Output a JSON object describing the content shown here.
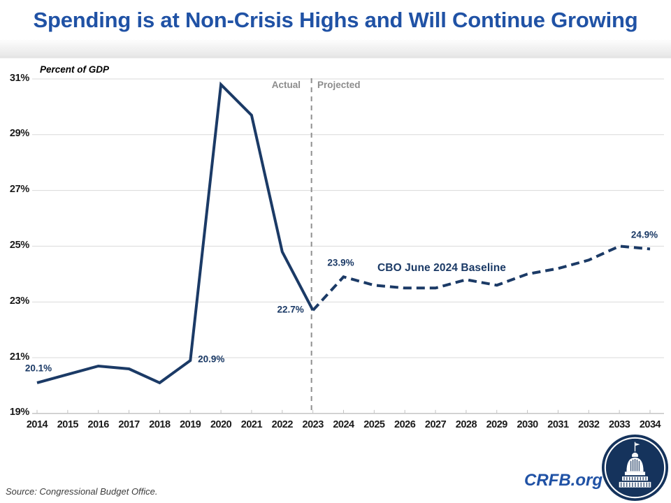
{
  "title": "Spending is at Non-Crisis Highs and Will Continue Growing",
  "source": "Source: Congressional Budget Office.",
  "branding": {
    "site": "CRFB.org",
    "logo_icon": "capitol-dome-icon"
  },
  "chart_data": {
    "type": "line",
    "title": "Spending is at Non-Crisis Highs and Will Continue Growing",
    "ylabel": "Percent of GDP",
    "xlabel": "",
    "ylim": [
      19,
      31
    ],
    "xlim": [
      2014,
      2034
    ],
    "grid": true,
    "y_ticks": [
      "31%",
      "29%",
      "27%",
      "25%",
      "23%",
      "21%",
      "19%"
    ],
    "years": [
      2014,
      2015,
      2016,
      2017,
      2018,
      2019,
      2020,
      2021,
      2022,
      2023,
      2024,
      2025,
      2026,
      2027,
      2028,
      2029,
      2030,
      2031,
      2032,
      2033,
      2034
    ],
    "series": [
      {
        "name": "Actual",
        "style": "solid",
        "years": [
          2014,
          2015,
          2016,
          2017,
          2018,
          2019,
          2020,
          2021,
          2022,
          2023
        ],
        "values": [
          20.1,
          20.4,
          20.7,
          20.6,
          20.1,
          20.9,
          30.8,
          29.7,
          24.8,
          22.7
        ]
      },
      {
        "name": "CBO June 2024 Baseline",
        "style": "dashed",
        "years": [
          2023,
          2024,
          2025,
          2026,
          2027,
          2028,
          2029,
          2030,
          2031,
          2032,
          2033,
          2034
        ],
        "values": [
          22.7,
          23.9,
          23.6,
          23.5,
          23.5,
          23.8,
          23.6,
          24.0,
          24.2,
          24.5,
          25.0,
          24.9
        ]
      }
    ],
    "divider": {
      "year": 2023,
      "left_label": "Actual",
      "right_label": "Projected"
    },
    "annotations": [
      {
        "year": 2014,
        "value": 20.1,
        "text": "20.1%"
      },
      {
        "year": 2019,
        "value": 20.9,
        "text": "20.9%"
      },
      {
        "year": 2023,
        "value": 22.7,
        "text": "22.7%"
      },
      {
        "year": 2024,
        "value": 23.9,
        "text": "23.9%"
      },
      {
        "year": 2034,
        "value": 24.9,
        "text": "24.9%"
      }
    ],
    "colors": {
      "line_navy": "#1b3a66",
      "accent_blue": "#2052a5",
      "divider_gray": "#8f8f8f",
      "grid_gray": "#d9d9d9",
      "axis_gray": "#c2c2c2"
    }
  }
}
